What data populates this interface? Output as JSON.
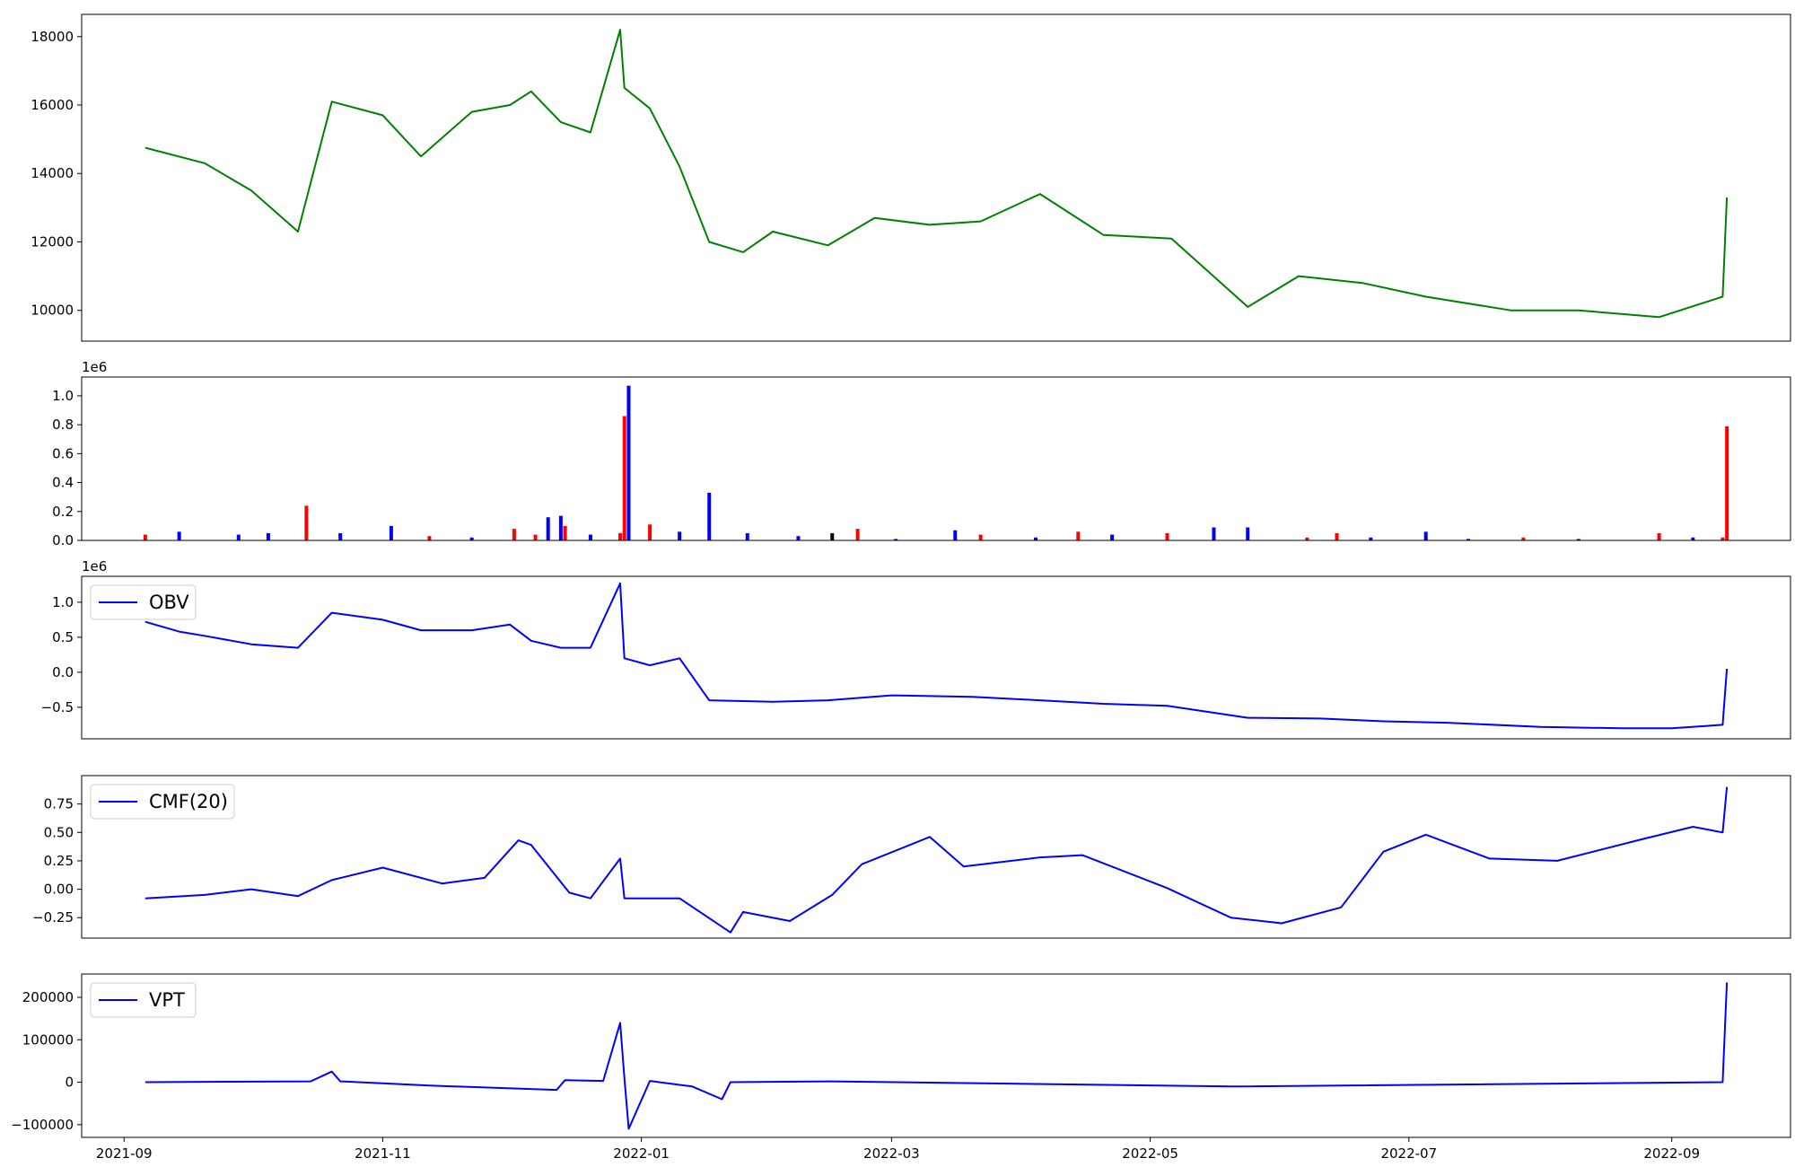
{
  "chart_data": [
    {
      "type": "line",
      "title": "",
      "xlabel": "",
      "ylabel": "",
      "ylim": [
        9100,
        18650
      ],
      "yticks": [
        10000,
        12000,
        14000,
        16000,
        18000
      ],
      "ytick_labels": [
        "10000",
        "12000",
        "14000",
        "16000",
        "18000"
      ],
      "x": [
        "2021-09-06",
        "2021-09-20",
        "2021-10-01",
        "2021-10-12",
        "2021-10-20",
        "2021-11-01",
        "2021-11-10",
        "2021-11-22",
        "2021-12-01",
        "2021-12-06",
        "2021-12-13",
        "2021-12-20",
        "2021-12-27",
        "2021-12-28",
        "2022-01-03",
        "2022-01-10",
        "2022-01-17",
        "2022-01-25",
        "2022-02-01",
        "2022-02-14",
        "2022-02-25",
        "2022-03-10",
        "2022-03-22",
        "2022-04-05",
        "2022-04-20",
        "2022-05-06",
        "2022-05-24",
        "2022-06-05",
        "2022-06-20",
        "2022-07-05",
        "2022-07-25",
        "2022-08-10",
        "2022-08-29",
        "2022-09-13",
        "2022-09-14"
      ],
      "series": [
        {
          "values": [
            14750,
            14300,
            13500,
            12300,
            16100,
            15700,
            14500,
            15800,
            16000,
            16400,
            15500,
            15200,
            18200,
            16500,
            15900,
            14200,
            12000,
            11700,
            12300,
            11900,
            12700,
            12500,
            12600,
            13400,
            12200,
            12100,
            10100,
            11000,
            10800,
            10400,
            10000,
            10000,
            9800,
            10400,
            13300
          ],
          "color": "#008000"
        }
      ]
    },
    {
      "type": "bar",
      "title": "",
      "xlabel": "",
      "ylabel": "",
      "offset_label": "1e6",
      "ylim": [
        0,
        1.13
      ],
      "yticks": [
        0.0,
        0.2,
        0.4,
        0.6,
        0.8,
        1.0
      ],
      "ytick_labels": [
        "0.0",
        "0.2",
        "0.4",
        "0.6",
        "0.8",
        "1.0"
      ],
      "x": [
        "2021-09-06",
        "2021-09-14",
        "2021-09-28",
        "2021-10-05",
        "2021-10-14",
        "2021-10-22",
        "2021-11-03",
        "2021-11-12",
        "2021-11-22",
        "2021-12-02",
        "2021-12-07",
        "2021-12-10",
        "2021-12-13",
        "2021-12-14",
        "2021-12-20",
        "2021-12-27",
        "2021-12-28",
        "2021-12-29",
        "2022-01-03",
        "2022-01-10",
        "2022-01-17",
        "2022-01-26",
        "2022-02-07",
        "2022-02-15",
        "2022-02-21",
        "2022-03-02",
        "2022-03-16",
        "2022-03-22",
        "2022-04-04",
        "2022-04-14",
        "2022-04-22",
        "2022-05-05",
        "2022-05-16",
        "2022-05-24",
        "2022-06-07",
        "2022-06-14",
        "2022-06-22",
        "2022-07-05",
        "2022-07-15",
        "2022-07-28",
        "2022-08-10",
        "2022-08-29",
        "2022-09-06",
        "2022-09-13",
        "2022-09-14"
      ],
      "values": [
        0.04,
        0.06,
        0.04,
        0.05,
        0.24,
        0.05,
        0.1,
        0.03,
        0.02,
        0.08,
        0.04,
        0.16,
        0.17,
        0.1,
        0.04,
        0.05,
        0.86,
        1.07,
        0.11,
        0.06,
        0.33,
        0.05,
        0.03,
        0.05,
        0.08,
        0.01,
        0.07,
        0.04,
        0.02,
        0.06,
        0.04,
        0.05,
        0.09,
        0.09,
        0.02,
        0.05,
        0.02,
        0.06,
        0.01,
        0.02,
        0.01,
        0.05,
        0.02,
        0.02,
        0.79
      ],
      "colors": [
        "#ff0000",
        "#0000ff",
        "#0000ff",
        "#0000ff",
        "#ff0000",
        "#0000ff",
        "#0000ff",
        "#ff0000",
        "#0000ff",
        "#ff0000",
        "#ff0000",
        "#0000ff",
        "#0000ff",
        "#ff0000",
        "#0000ff",
        "#ff0000",
        "#ff0000",
        "#0000ff",
        "#ff0000",
        "#0000ff",
        "#0000ff",
        "#0000ff",
        "#0000ff",
        "#000000",
        "#ff0000",
        "#0000ff",
        "#0000ff",
        "#ff0000",
        "#0000ff",
        "#ff0000",
        "#0000ff",
        "#ff0000",
        "#0000ff",
        "#0000ff",
        "#ff0000",
        "#ff0000",
        "#0000ff",
        "#0000ff",
        "#0000ff",
        "#ff0000",
        "#0000ff",
        "#ff0000",
        "#0000ff",
        "#ff0000",
        "#ff0000"
      ]
    },
    {
      "type": "line",
      "title": "",
      "xlabel": "",
      "ylabel": "",
      "offset_label": "1e6",
      "ylim": [
        -0.95,
        1.37
      ],
      "yticks": [
        -0.5,
        0.0,
        0.5,
        1.0
      ],
      "ytick_labels": [
        "−0.5",
        "0.0",
        "0.5",
        "1.0"
      ],
      "legend_position": "upper left",
      "x": [
        "2021-09-06",
        "2021-09-14",
        "2021-09-20",
        "2021-10-01",
        "2021-10-12",
        "2021-10-20",
        "2021-11-01",
        "2021-11-10",
        "2021-11-22",
        "2021-12-01",
        "2021-12-06",
        "2021-12-13",
        "2021-12-20",
        "2021-12-27",
        "2021-12-28",
        "2022-01-03",
        "2022-01-10",
        "2022-01-17",
        "2022-02-01",
        "2022-02-14",
        "2022-03-01",
        "2022-03-20",
        "2022-04-05",
        "2022-04-20",
        "2022-05-05",
        "2022-05-24",
        "2022-06-10",
        "2022-06-25",
        "2022-07-10",
        "2022-08-01",
        "2022-08-20",
        "2022-09-01",
        "2022-09-13",
        "2022-09-14"
      ],
      "series": [
        {
          "name": "OBV",
          "values": [
            0.72,
            0.58,
            0.52,
            0.4,
            0.35,
            0.85,
            0.75,
            0.6,
            0.6,
            0.68,
            0.45,
            0.35,
            0.35,
            1.27,
            0.2,
            0.1,
            0.2,
            -0.4,
            -0.42,
            -0.4,
            -0.33,
            -0.35,
            -0.4,
            -0.45,
            -0.48,
            -0.65,
            -0.66,
            -0.7,
            -0.72,
            -0.78,
            -0.8,
            -0.8,
            -0.75,
            0.05
          ],
          "color": "#0000ff"
        }
      ]
    },
    {
      "type": "line",
      "title": "",
      "xlabel": "",
      "ylabel": "",
      "ylim": [
        -0.43,
        1.0
      ],
      "yticks": [
        -0.25,
        0.0,
        0.25,
        0.5,
        0.75
      ],
      "ytick_labels": [
        "−0.25",
        "0.00",
        "0.25",
        "0.50",
        "0.75"
      ],
      "legend_position": "upper left",
      "x": [
        "2021-09-06",
        "2021-09-20",
        "2021-10-01",
        "2021-10-12",
        "2021-10-20",
        "2021-11-01",
        "2021-11-15",
        "2021-11-25",
        "2021-12-03",
        "2021-12-06",
        "2021-12-15",
        "2021-12-20",
        "2021-12-27",
        "2021-12-28",
        "2022-01-10",
        "2022-01-22",
        "2022-01-25",
        "2022-02-05",
        "2022-02-15",
        "2022-02-22",
        "2022-03-10",
        "2022-03-18",
        "2022-04-05",
        "2022-04-15",
        "2022-05-05",
        "2022-05-20",
        "2022-06-01",
        "2022-06-15",
        "2022-06-25",
        "2022-07-05",
        "2022-07-20",
        "2022-08-05",
        "2022-08-25",
        "2022-09-06",
        "2022-09-13",
        "2022-09-14"
      ],
      "series": [
        {
          "name": "CMF(20)",
          "values": [
            -0.08,
            -0.05,
            0.0,
            -0.06,
            0.08,
            0.19,
            0.05,
            0.1,
            0.43,
            0.39,
            -0.03,
            -0.08,
            0.27,
            -0.08,
            -0.08,
            -0.38,
            -0.2,
            -0.28,
            -0.05,
            0.22,
            0.46,
            0.2,
            0.28,
            0.3,
            0.01,
            -0.25,
            -0.3,
            -0.16,
            0.33,
            0.48,
            0.27,
            0.25,
            0.44,
            0.55,
            0.5,
            0.9
          ],
          "color": "#0000ff"
        }
      ]
    },
    {
      "type": "line",
      "title": "",
      "xlabel": "",
      "ylabel": "",
      "ylim": [
        -130000,
        255000
      ],
      "yticks": [
        -100000,
        0,
        100000,
        200000
      ],
      "ytick_labels": [
        "−100000",
        "0",
        "100000",
        "200000"
      ],
      "legend_position": "upper left",
      "x": [
        "2021-09-06",
        "2021-10-15",
        "2021-10-20",
        "2021-10-22",
        "2021-11-12",
        "2021-12-12",
        "2021-12-14",
        "2021-12-23",
        "2021-12-27",
        "2021-12-28",
        "2021-12-29",
        "2022-01-03",
        "2022-01-13",
        "2022-01-20",
        "2022-01-22",
        "2022-02-15",
        "2022-05-20",
        "2022-09-13",
        "2022-09-14"
      ],
      "series": [
        {
          "name": "VPT",
          "values": [
            0,
            2000,
            25000,
            2000,
            -8000,
            -18000,
            5000,
            3000,
            140000,
            10000,
            -110000,
            3000,
            -10000,
            -40000,
            0,
            2000,
            -10000,
            0,
            235000
          ],
          "color": "#0000ff"
        }
      ]
    }
  ],
  "x_axis": {
    "ticks": [
      "2021-09-01",
      "2021-11-01",
      "2022-01-01",
      "2022-03-01",
      "2022-05-01",
      "2022-07-01",
      "2022-09-01"
    ],
    "tick_labels": [
      "2021-09",
      "2021-11",
      "2022-01",
      "2022-03",
      "2022-05",
      "2022-07",
      "2022-09"
    ],
    "range": [
      "2021-08-22",
      "2022-09-29"
    ]
  }
}
